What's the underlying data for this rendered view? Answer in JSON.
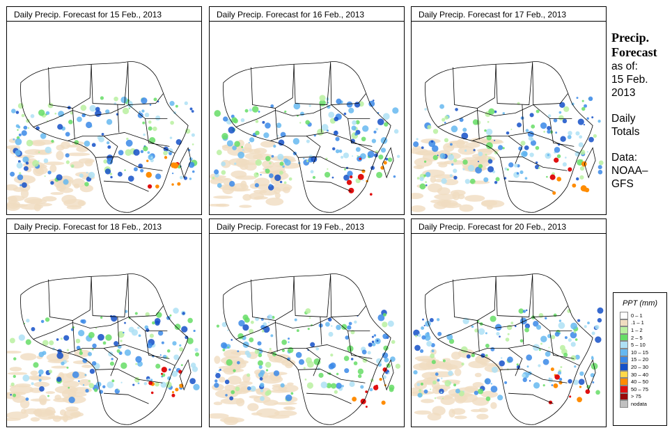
{
  "panels": [
    {
      "title": "Daily Precip. Forecast for  15 Feb., 2013"
    },
    {
      "title": "Daily Precip. Forecast for  16 Feb., 2013"
    },
    {
      "title": "Daily Precip. Forecast for  17 Feb., 2013"
    },
    {
      "title": "Daily Precip. Forecast for  18 Feb., 2013"
    },
    {
      "title": "Daily Precip. Forecast for  19 Feb., 2013"
    },
    {
      "title": "Daily Precip. Forecast for  20 Feb., 2013"
    }
  ],
  "sidebar": {
    "title_line1": "Precip.",
    "title_line2": "Forecast",
    "asof_label": "as of:",
    "asof_date_line1": "15 Feb.",
    "asof_date_line2": "2013",
    "period_line1": "Daily",
    "period_line2": "Totals",
    "data_label": "Data:",
    "source_line1": "NOAA–",
    "source_line2": "GFS"
  },
  "legend": {
    "title": "PPT (mm)",
    "classes": [
      {
        "label": "0 – 1",
        "color": "#ffffff"
      },
      {
        "label": ".1 – 1",
        "color": "#f0dcc0"
      },
      {
        "label": "1 – 2",
        "color": "#b8f0a0"
      },
      {
        "label": "2 – 5",
        "color": "#66dd66"
      },
      {
        "label": "5 – 10",
        "color": "#aee0f5"
      },
      {
        "label": "10 – 15",
        "color": "#66b8f0"
      },
      {
        "label": "15 – 20",
        "color": "#3a88e8"
      },
      {
        "label": "20 – 30",
        "color": "#1450c8"
      },
      {
        "label": "30 – 40",
        "color": "#ffd84a"
      },
      {
        "label": "40 – 50",
        "color": "#ff8c00"
      },
      {
        "label": "50 – 75",
        "color": "#e01010"
      },
      {
        "label": "> 75",
        "color": "#9a0a0a"
      },
      {
        "label": "nodata",
        "color": "#c0c0c0"
      }
    ]
  }
}
